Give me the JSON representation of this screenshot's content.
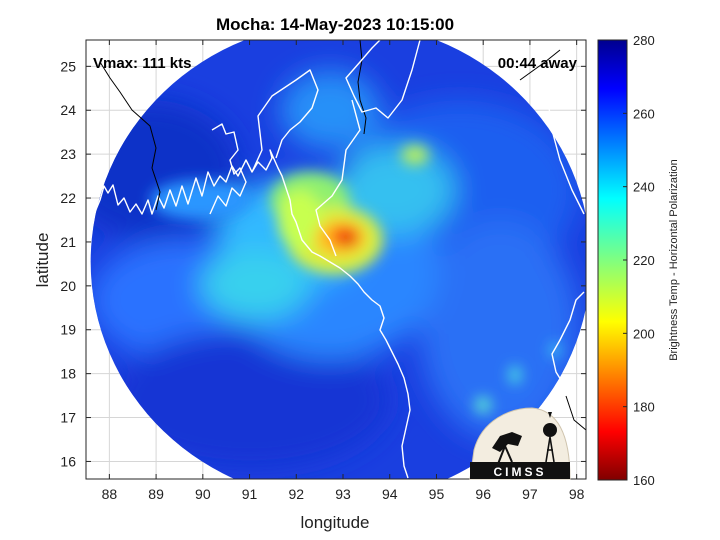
{
  "title": "Mocha: 14-May-2023 10:15:00",
  "annotations": {
    "vmax": "Vmax: 111 kts",
    "away": "00:44 away"
  },
  "axes": {
    "xlabel": "longitude",
    "ylabel": "latitude",
    "xticks": [
      "88",
      "89",
      "90",
      "91",
      "92",
      "93",
      "94",
      "95",
      "96",
      "97",
      "98"
    ],
    "yticks": [
      "16",
      "17",
      "18",
      "19",
      "20",
      "21",
      "22",
      "23",
      "24",
      "25"
    ],
    "xlim": [
      87.5,
      98.2
    ],
    "ylim": [
      15.6,
      25.6
    ],
    "grid": true
  },
  "colorbar": {
    "label": "Brightness Temp - Horizontal Polarization",
    "ticks": [
      "280",
      "260",
      "240",
      "220",
      "200",
      "180",
      "160"
    ],
    "range": [
      160,
      280
    ],
    "colormap": "jet"
  },
  "map": {
    "swath_center": [
      92.95,
      20.55
    ],
    "storm_center": [
      93.1,
      21.05
    ],
    "min_brightness_temp": 172,
    "background_brightness_temp": 270
  },
  "logo": {
    "text": "CIMSS"
  },
  "colors": {
    "coastline": "#ffffff",
    "grid": "#d6d6d6",
    "axis": "#262626"
  }
}
